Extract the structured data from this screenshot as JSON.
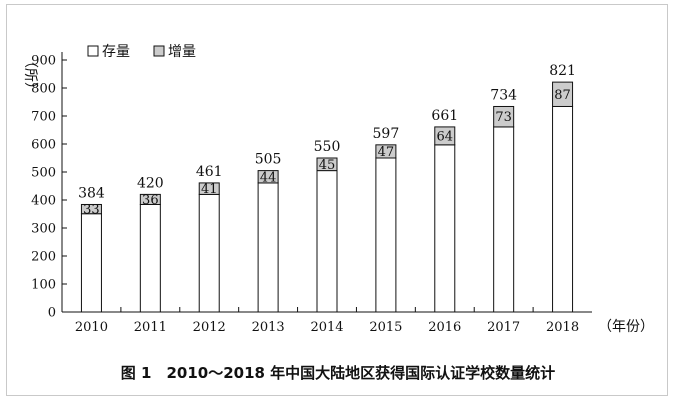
{
  "chart_data": {
    "type": "bar",
    "stacked": true,
    "categories": [
      "2010",
      "2011",
      "2012",
      "2013",
      "2014",
      "2015",
      "2016",
      "2017",
      "2018"
    ],
    "series": [
      {
        "name": "存量",
        "values": [
          351,
          384,
          420,
          461,
          505,
          550,
          597,
          661,
          734
        ],
        "color": "#ffffff"
      },
      {
        "name": "增量",
        "values": [
          33,
          36,
          41,
          44,
          45,
          47,
          64,
          73,
          87
        ],
        "color": "#cccccc"
      }
    ],
    "totals": [
      384,
      420,
      461,
      505,
      550,
      597,
      661,
      734,
      821
    ],
    "ylabel": "（所）",
    "xlabel": "（年份）",
    "ylim": [
      0,
      900
    ],
    "yticks": [
      0,
      100,
      200,
      300,
      400,
      500,
      600,
      700,
      800,
      900
    ],
    "legend_placement": "top-left",
    "grid": false
  },
  "caption": "图 1　2010～2018 年中国大陆地区获得国际认证学校数量统计"
}
